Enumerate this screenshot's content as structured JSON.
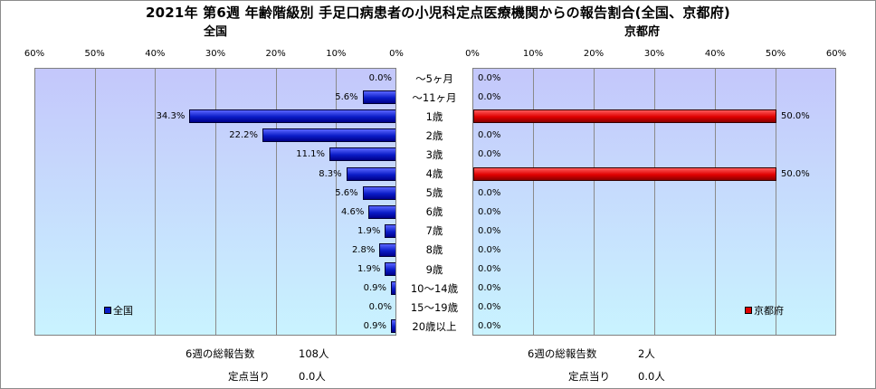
{
  "title": "2021年 第6週 年齢階級別 手足口病患者の小児科定点医療機関からの報告割合(全国、京都府)",
  "colors": {
    "national": "#0b1cc7",
    "kyoto": "#e00000",
    "plot_bg_top": "#c4c7fb",
    "plot_bg_bottom": "#c9f3ff"
  },
  "categories": [
    "～5ヶ月",
    "～11ヶ月",
    "1歳",
    "2歳",
    "3歳",
    "4歳",
    "5歳",
    "6歳",
    "7歳",
    "8歳",
    "9歳",
    "10～14歳",
    "15～19歳",
    "20歳以上"
  ],
  "chart_data": [
    {
      "type": "bar",
      "orientation": "horizontal-reversed",
      "subtitle": "全国",
      "categories": [
        "～5ヶ月",
        "～11ヶ月",
        "1歳",
        "2歳",
        "3歳",
        "4歳",
        "5歳",
        "6歳",
        "7歳",
        "8歳",
        "9歳",
        "10～14歳",
        "15～19歳",
        "20歳以上"
      ],
      "series": [
        {
          "name": "全国",
          "values": [
            0.0,
            5.6,
            34.3,
            22.2,
            11.1,
            8.3,
            5.6,
            4.6,
            1.9,
            2.8,
            1.9,
            0.9,
            0.0,
            0.9
          ]
        }
      ],
      "value_labels": [
        "0.0%",
        "5.6%",
        "34.3%",
        "22.2%",
        "11.1%",
        "8.3%",
        "5.6%",
        "4.6%",
        "1.9%",
        "2.8%",
        "1.9%",
        "0.9%",
        "0.0%",
        "0.9%"
      ],
      "xlim": [
        0,
        60
      ],
      "xticks": [
        "60%",
        "50%",
        "40%",
        "30%",
        "20%",
        "10%",
        "0%"
      ],
      "grid": true,
      "legend_position": "bottom-left"
    },
    {
      "type": "bar",
      "orientation": "horizontal",
      "subtitle": "京都府",
      "categories": [
        "～5ヶ月",
        "～11ヶ月",
        "1歳",
        "2歳",
        "3歳",
        "4歳",
        "5歳",
        "6歳",
        "7歳",
        "8歳",
        "9歳",
        "10～14歳",
        "15～19歳",
        "20歳以上"
      ],
      "series": [
        {
          "name": "京都府",
          "values": [
            0.0,
            0.0,
            50.0,
            0.0,
            0.0,
            50.0,
            0.0,
            0.0,
            0.0,
            0.0,
            0.0,
            0.0,
            0.0,
            0.0
          ]
        }
      ],
      "value_labels": [
        "0.0%",
        "0.0%",
        "50.0%",
        "0.0%",
        "0.0%",
        "50.0%",
        "0.0%",
        "0.0%",
        "0.0%",
        "0.0%",
        "0.0%",
        "0.0%",
        "0.0%",
        "0.0%"
      ],
      "xlim": [
        0,
        60
      ],
      "xticks": [
        "0%",
        "10%",
        "20%",
        "30%",
        "40%",
        "50%",
        "60%"
      ],
      "grid": true,
      "legend_position": "bottom-right"
    }
  ],
  "footer": {
    "national_total_label": "6週の総報告数",
    "national_total_value": "108人",
    "national_per_label": "定点当り",
    "national_per_value": "0.0人",
    "kyoto_total_label": "6週の総報告数",
    "kyoto_total_value": "2人",
    "kyoto_per_label": "定点当り",
    "kyoto_per_value": "0.0人"
  }
}
